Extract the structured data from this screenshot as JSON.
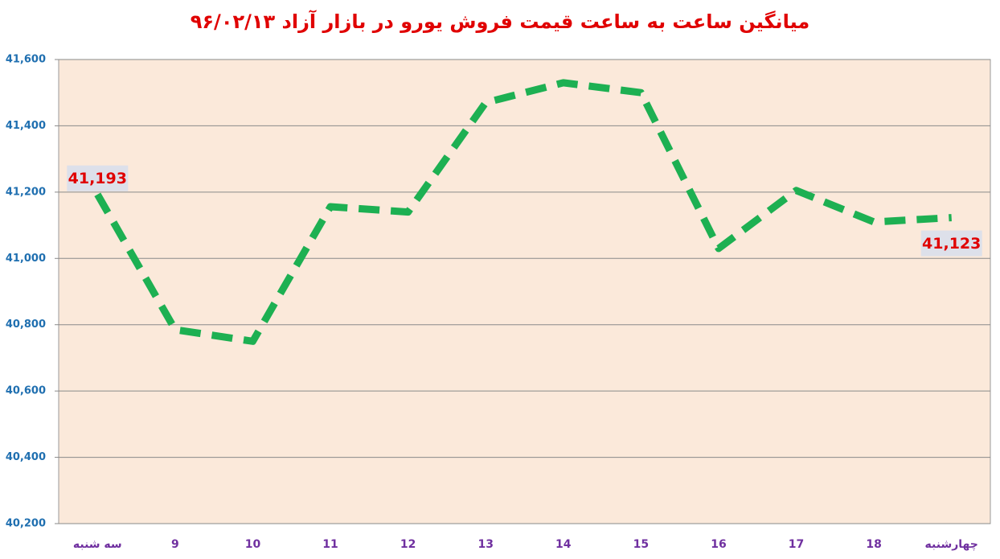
{
  "chart_data": {
    "type": "line",
    "title": "میانگین ساعت به ساعت قیمت فروش یورو در بازار آزاد ۹۶/۰۲/۱۳",
    "categories": [
      "سه شنبه",
      "9",
      "10",
      "11",
      "12",
      "13",
      "14",
      "15",
      "16",
      "17",
      "18",
      "چهارشنبه"
    ],
    "values": [
      41193,
      40785,
      40750,
      41156,
      41140,
      41470,
      41530,
      41500,
      41030,
      41205,
      41110,
      41123
    ],
    "value_labels": [
      "41,193",
      null,
      null,
      null,
      null,
      null,
      null,
      null,
      null,
      null,
      null,
      "41,123"
    ],
    "color": "#1db052",
    "ylim": [
      40200,
      41600
    ],
    "yticks": [
      {
        "value": 40200,
        "label": "40,200"
      },
      {
        "value": 40400,
        "label": "40,400"
      },
      {
        "value": 40600,
        "label": "40,600"
      },
      {
        "value": 40800,
        "label": "40,800"
      },
      {
        "value": 41000,
        "label": "41,000"
      },
      {
        "value": 41200,
        "label": "41,200"
      },
      {
        "value": 41400,
        "label": "41,400"
      },
      {
        "value": 41600,
        "label": "41,600"
      }
    ],
    "grid": true
  }
}
